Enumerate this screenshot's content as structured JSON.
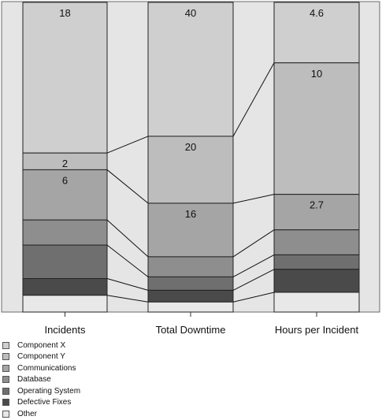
{
  "chart_data": {
    "type": "bar",
    "subtype": "stacked-bar-with-connectors",
    "categories": [
      "Incidents",
      "Total Downtime",
      "Hours per Incident"
    ],
    "series": [
      {
        "name": "Component X",
        "color": "#cfcfcf",
        "values": [
          18,
          40,
          4.6
        ],
        "labels": [
          "18",
          "40",
          "4.6"
        ]
      },
      {
        "name": "Component Y",
        "color": "#bdbdbd",
        "values": [
          2,
          20,
          10
        ],
        "labels": [
          "2",
          "20",
          "10"
        ]
      },
      {
        "name": "Communications",
        "color": "#a5a5a5",
        "values": [
          6,
          16,
          2.7
        ],
        "labels": [
          "6",
          "16",
          "2.7"
        ]
      },
      {
        "name": "Database",
        "color": "#8e8e8e",
        "values": [
          3,
          6,
          1.9
        ],
        "labels": [
          "",
          "",
          ""
        ]
      },
      {
        "name": "Operating System",
        "color": "#6f6f6f",
        "values": [
          4,
          4,
          1.1
        ],
        "labels": [
          "",
          "",
          ""
        ]
      },
      {
        "name": "Defective Fixes",
        "color": "#4a4a4a",
        "values": [
          2,
          3.5,
          1.75
        ],
        "labels": [
          "",
          "",
          ""
        ]
      },
      {
        "name": "Other",
        "color": "#e8e8e8",
        "values": [
          2,
          3,
          1.5
        ],
        "labels": [
          "",
          "",
          ""
        ]
      }
    ],
    "grid": false,
    "legend_position": "bottom-left"
  }
}
